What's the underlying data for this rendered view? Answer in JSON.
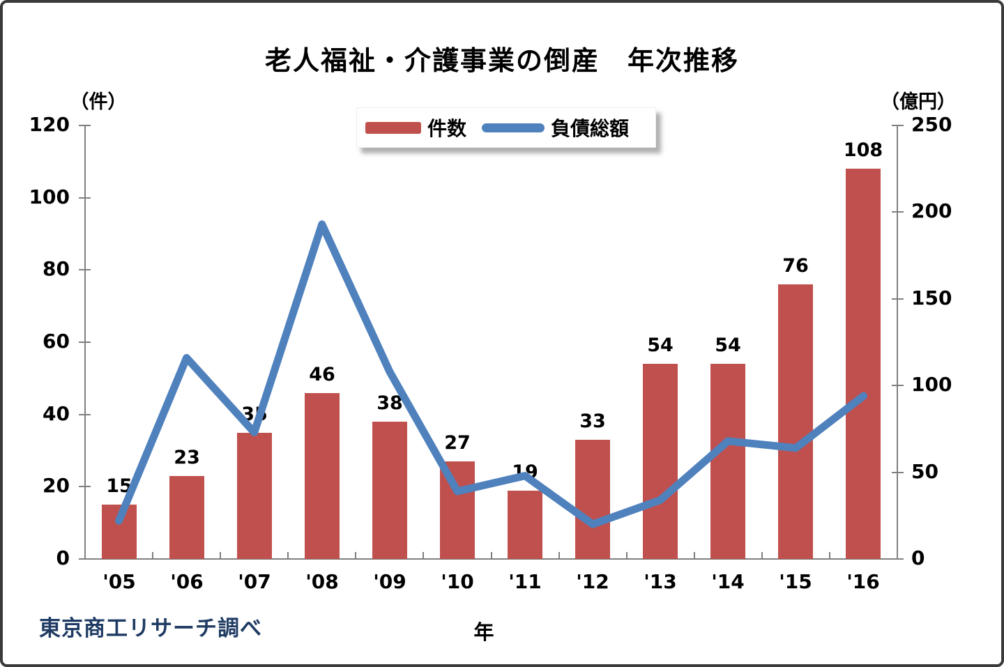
{
  "title": "老人福祉・介護事業の倒産　年次推移",
  "source_note": "東京商工リサーチ調べ",
  "colors": {
    "bar": "#C0504D",
    "line": "#4F81BD",
    "axis": "#7F7F7F",
    "text": "#000000",
    "source_text": "#1F3B63",
    "legend_shadow": "#9a9a9a"
  },
  "chart_data": {
    "type": "bar",
    "subtype": "bar-and-line-combo",
    "title": "老人福祉・介護事業の倒産　年次推移",
    "categories": [
      "'05",
      "'06",
      "'07",
      "'08",
      "'09",
      "'10",
      "'11",
      "'12",
      "'13",
      "'14",
      "'15",
      "'16"
    ],
    "series": [
      {
        "name": "件数",
        "type": "bar",
        "axis": "left",
        "color": "#C0504D",
        "values": [
          15,
          23,
          35,
          46,
          38,
          27,
          19,
          33,
          54,
          54,
          76,
          108
        ],
        "data_labels": true
      },
      {
        "name": "負債総額",
        "type": "line",
        "axis": "right",
        "color": "#4F81BD",
        "values": [
          22,
          116,
          73,
          193,
          108,
          39,
          48,
          20,
          34,
          68,
          64,
          94
        ],
        "data_labels": false
      }
    ],
    "left_axis": {
      "unit": "（件）",
      "min": 0,
      "max": 120,
      "step": 20,
      "ticks": [
        0,
        20,
        40,
        60,
        80,
        100,
        120
      ]
    },
    "right_axis": {
      "unit": "（億円）",
      "min": 0,
      "max": 250,
      "step": 50,
      "ticks": [
        0,
        50,
        100,
        150,
        200,
        250
      ]
    },
    "xlabel": "年",
    "grid": false,
    "legend_position": "top-center"
  }
}
